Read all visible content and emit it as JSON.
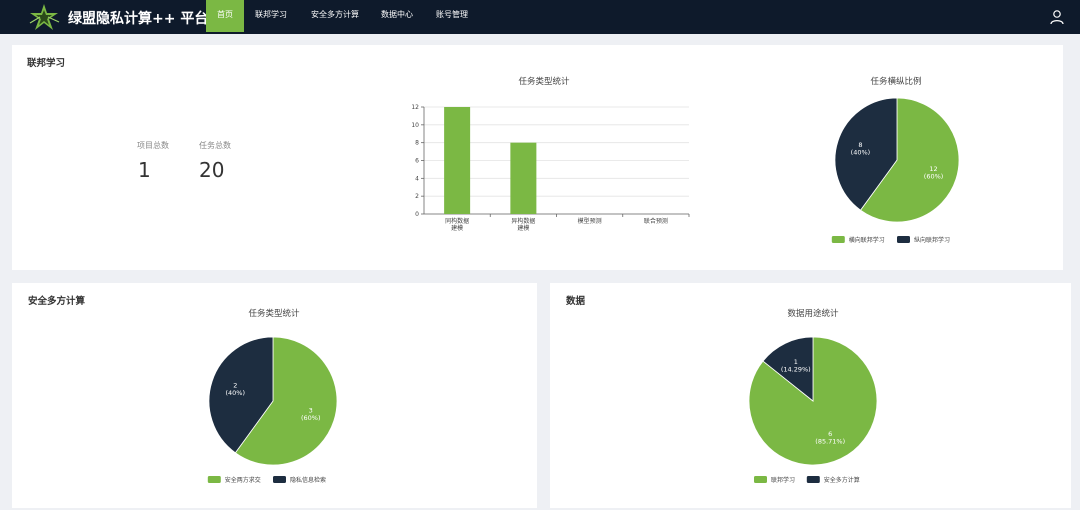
{
  "header": {
    "brand": "绿盟隐私计算++ 平台",
    "nav": [
      {
        "label": "首页",
        "active": true
      },
      {
        "label": "联邦学习",
        "active": false
      },
      {
        "label": "安全多方计算",
        "active": false
      },
      {
        "label": "数据中心",
        "active": false
      },
      {
        "label": "账号管理",
        "active": false
      }
    ]
  },
  "federated": {
    "title": "联邦学习",
    "stats": {
      "project_label": "项目总数",
      "project_value": "1",
      "task_label": "任务总数",
      "task_value": "20"
    }
  },
  "mpc": {
    "title": "安全多方计算"
  },
  "data_panel": {
    "title": "数据"
  },
  "colors": {
    "green": "#7bb844",
    "navy": "#1d2d40",
    "header": "#0e1a2b"
  },
  "chart_data": [
    {
      "type": "bar",
      "title": "任务类型统计",
      "categories": [
        [
          "同构数据",
          "建模"
        ],
        [
          "异构数据",
          "建模"
        ],
        [
          "模型预测"
        ],
        [
          "联合预测"
        ]
      ],
      "values": [
        12,
        8,
        0,
        0
      ],
      "ylim": [
        0,
        12
      ],
      "yticks": [
        "0",
        "2",
        "4",
        "6",
        "8",
        "10",
        "12"
      ],
      "color": "#7bb844"
    },
    {
      "type": "pie",
      "title": "任务横纵比例",
      "slices": [
        {
          "name": "横向联邦学习",
          "value": 12,
          "label": "12",
          "pct": "(60%)",
          "color": "#7bb844"
        },
        {
          "name": "纵向联邦学习",
          "value": 8,
          "label": "8",
          "pct": "(40%)",
          "color": "#1d2d40"
        }
      ]
    },
    {
      "type": "pie",
      "title": "任务类型统计",
      "slices": [
        {
          "name": "安全两方求交",
          "value": 3,
          "label": "3",
          "pct": "(60%)",
          "color": "#7bb844"
        },
        {
          "name": "隐私信息检索",
          "value": 2,
          "label": "2",
          "pct": "(40%)",
          "color": "#1d2d40"
        }
      ]
    },
    {
      "type": "pie",
      "title": "数据用途统计",
      "slices": [
        {
          "name": "联邦学习",
          "value": 6,
          "label": "6",
          "pct": "(85.71%)",
          "color": "#7bb844"
        },
        {
          "name": "安全多方计算",
          "value": 1,
          "label": "1",
          "pct": "(14.29%)",
          "color": "#1d2d40"
        }
      ]
    }
  ]
}
